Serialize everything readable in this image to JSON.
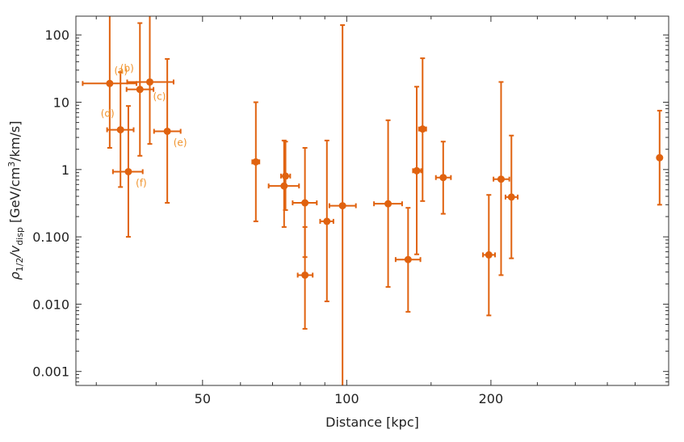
{
  "chart_data": {
    "type": "scatter",
    "title": "",
    "xlabel": "Distance [kpc]",
    "ylabel_parts": [
      "ρ",
      "1/2",
      "/v",
      "disp",
      " [GeV/cm",
      "3",
      "/km/s]"
    ],
    "xscale": "log",
    "yscale": "log",
    "xlim": [
      27.2,
      470
    ],
    "ylim": [
      0.00062,
      190
    ],
    "x_ticks": [
      {
        "value": 50,
        "label": "50"
      },
      {
        "value": 100,
        "label": "100"
      },
      {
        "value": 200,
        "label": "200"
      }
    ],
    "y_ticks": [
      {
        "value": 0.001,
        "label": "0.001"
      },
      {
        "value": 0.01,
        "label": "0.010"
      },
      {
        "value": 0.1,
        "label": "0.100"
      },
      {
        "value": 1,
        "label": "1"
      },
      {
        "value": 10,
        "label": "10"
      },
      {
        "value": 100,
        "label": "100"
      }
    ],
    "grid": false,
    "marker_color": "#e0620f",
    "label_color": "#f0922a",
    "points": [
      {
        "x": 32,
        "x_lo": 28.1,
        "x_hi": 36.4,
        "y": 19,
        "y_lo": 2.1,
        "y_hi": 190,
        "label": "(a)"
      },
      {
        "x": 37,
        "x_lo": 34.7,
        "x_hi": 39.5,
        "y": 15.5,
        "y_lo": 1.6,
        "y_hi": 150,
        "label": "(b)"
      },
      {
        "x": 38.8,
        "x_lo": 34.8,
        "x_hi": 43.5,
        "y": 20,
        "y_lo": 2.4,
        "y_hi": 190,
        "label": "(c)"
      },
      {
        "x": 33.7,
        "x_lo": 31.6,
        "x_hi": 35.9,
        "y": 3.9,
        "y_lo": 0.55,
        "y_hi": 28,
        "label": "(d)"
      },
      {
        "x": 42.2,
        "x_lo": 39.6,
        "x_hi": 45,
        "y": 3.7,
        "y_lo": 0.32,
        "y_hi": 44,
        "label": "(e)"
      },
      {
        "x": 35,
        "x_lo": 32.5,
        "x_hi": 37.5,
        "y": 0.93,
        "y_lo": 0.1,
        "y_hi": 8.8,
        "label": "(f)"
      },
      {
        "x": 64.6,
        "x_lo": 63.5,
        "x_hi": 65.7,
        "y": 1.3,
        "y_lo": 0.17,
        "y_hi": 10
      },
      {
        "x": 74.5,
        "x_lo": 72.9,
        "x_hi": 76.2,
        "y": 0.8,
        "y_lo": 0.25,
        "y_hi": 2.6
      },
      {
        "x": 74,
        "x_lo": 68.7,
        "x_hi": 79.5,
        "y": 0.57,
        "y_lo": 0.14,
        "y_hi": 2.7
      },
      {
        "x": 81.8,
        "x_lo": 77.1,
        "x_hi": 86.6,
        "y": 0.32,
        "y_lo": 0.05,
        "y_hi": 2.1
      },
      {
        "x": 81.8,
        "x_lo": 79,
        "x_hi": 84.9,
        "y": 0.027,
        "y_lo": 0.0043,
        "y_hi": 0.14
      },
      {
        "x": 90.9,
        "x_lo": 88,
        "x_hi": 93.8,
        "y": 0.17,
        "y_lo": 0.011,
        "y_hi": 2.7
      },
      {
        "x": 98,
        "x_lo": 92,
        "x_hi": 104.5,
        "y": 0.29,
        "y_lo": 0.00062,
        "y_hi": 140
      },
      {
        "x": 122,
        "x_lo": 114,
        "x_hi": 130.5,
        "y": 0.31,
        "y_lo": 0.018,
        "y_hi": 5.4
      },
      {
        "x": 134.3,
        "x_lo": 126.5,
        "x_hi": 142.5,
        "y": 0.046,
        "y_lo": 0.0077,
        "y_hi": 0.27
      },
      {
        "x": 140,
        "x_lo": 137.5,
        "x_hi": 143,
        "y": 0.96,
        "y_lo": 0.055,
        "y_hi": 17
      },
      {
        "x": 144,
        "x_lo": 141.5,
        "x_hi": 146.5,
        "y": 4,
        "y_lo": 0.34,
        "y_hi": 45
      },
      {
        "x": 159,
        "x_lo": 153.5,
        "x_hi": 165,
        "y": 0.76,
        "y_lo": 0.22,
        "y_hi": 2.6
      },
      {
        "x": 198,
        "x_lo": 192.5,
        "x_hi": 204,
        "y": 0.054,
        "y_lo": 0.0068,
        "y_hi": 0.42
      },
      {
        "x": 210,
        "x_lo": 202.5,
        "x_hi": 218.5,
        "y": 0.72,
        "y_lo": 0.027,
        "y_hi": 20
      },
      {
        "x": 220.7,
        "x_lo": 214.5,
        "x_hi": 227.5,
        "y": 0.39,
        "y_lo": 0.048,
        "y_hi": 3.2
      },
      {
        "x": 450,
        "x_lo": 448,
        "x_hi": 452,
        "y": 1.5,
        "y_lo": 0.3,
        "y_hi": 7.5
      }
    ]
  }
}
